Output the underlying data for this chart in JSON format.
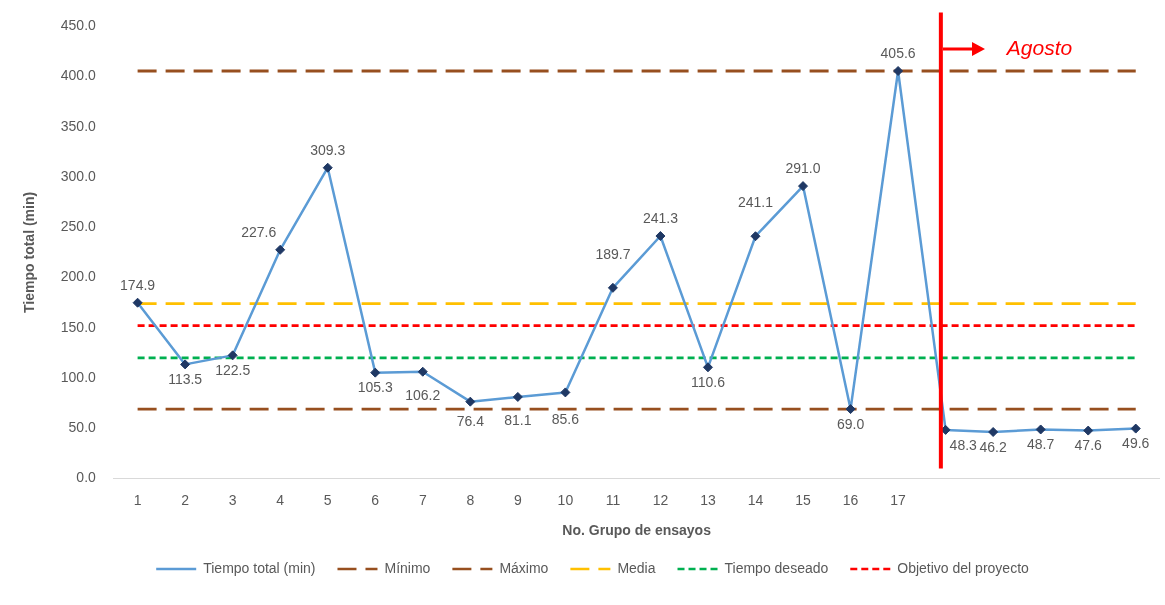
{
  "chart_data": {
    "type": "line",
    "xlabel": "No. Grupo de ensayos",
    "ylabel": "Tiempo total (min)",
    "x": [
      1,
      2,
      3,
      4,
      5,
      6,
      7,
      8,
      9,
      10,
      11,
      12,
      13,
      14,
      15,
      16,
      17,
      18,
      19,
      20,
      21,
      22
    ],
    "xlim": [
      0.5,
      22.5
    ],
    "xticks": [
      1,
      2,
      3,
      4,
      5,
      6,
      7,
      8,
      9,
      10,
      11,
      12,
      13,
      14,
      15,
      16,
      17
    ],
    "ylim": [
      0,
      450
    ],
    "yticks": [
      {
        "value": 0,
        "label": "0.0"
      },
      {
        "value": 50,
        "label": "50.0"
      },
      {
        "value": 100,
        "label": "100.0"
      },
      {
        "value": 150,
        "label": "150.0"
      },
      {
        "value": 200,
        "label": "200.0"
      },
      {
        "value": 250,
        "label": "250.0"
      },
      {
        "value": 300,
        "label": "300.0"
      },
      {
        "value": 350,
        "label": "350.0"
      },
      {
        "value": 400,
        "label": "400.0"
      },
      {
        "value": 450,
        "label": "450.0"
      }
    ],
    "legend": "bottom",
    "series": [
      {
        "name": "Tiempo total (min)",
        "color": "#5b9bd5",
        "colors": [
          "#1f3864",
          "#1f3864",
          "#1f3864",
          "#1f3864",
          "#1f3864",
          "#1f3864",
          "#1f3864",
          "#1f3864",
          "#1f3864",
          "#1f3864",
          "#1f3864",
          "#1f3864",
          "#1f3864",
          "#1f3864",
          "#1f3864",
          "#1f3864",
          "#1f3864",
          "#1f3864",
          "#1f3864",
          "#1f3864",
          "#1f3864",
          "#1f3864"
        ],
        "marker": "diamond",
        "line_style": "solid",
        "values": [
          174.9,
          113.5,
          122.5,
          227.6,
          309.3,
          105.3,
          106.2,
          76.4,
          81.1,
          85.6,
          189.7,
          241.3,
          110.6,
          241.1,
          291.0,
          69.0,
          405.6,
          48.3,
          46.2,
          48.7,
          47.6,
          49.6
        ],
        "value_labels": [
          "174.9",
          "113.5",
          "122.5",
          "227.6",
          "309.3",
          "105.3",
          "106.2",
          "76.4",
          "81.1",
          "85.6",
          "189.7",
          "241.3",
          "110.6",
          "241.1",
          "291.0",
          "69.0",
          "405.6",
          "48.3",
          "46.2",
          "48.7",
          "47.6",
          "49.6"
        ]
      },
      {
        "name": "Mínimo",
        "color": "#974f1f",
        "marker": "none",
        "line_style": "dashed",
        "values": [
          69.0,
          69.0,
          69.0,
          69.0,
          69.0,
          69.0,
          69.0,
          69.0,
          69.0,
          69.0,
          69.0,
          69.0,
          69.0,
          69.0,
          69.0,
          69.0,
          69.0,
          69.0,
          69.0,
          69.0,
          69.0,
          69.0
        ]
      },
      {
        "name": "Máximo",
        "color": "#974f1f",
        "marker": "none",
        "line_style": "dashed",
        "values": [
          405.6,
          405.6,
          405.6,
          405.6,
          405.6,
          405.6,
          405.6,
          405.6,
          405.6,
          405.6,
          405.6,
          405.6,
          405.6,
          405.6,
          405.6,
          405.6,
          405.6,
          405.6,
          405.6,
          405.6,
          405.6,
          405.6
        ]
      },
      {
        "name": "Media",
        "color": "#ffc000",
        "marker": "none",
        "line_style": "dashed",
        "values": [
          174,
          174,
          174,
          174,
          174,
          174,
          174,
          174,
          174,
          174,
          174,
          174,
          174,
          174,
          174,
          174,
          174,
          174,
          174,
          174,
          174,
          174
        ]
      },
      {
        "name": "Tiempo deseado",
        "color": "#00b050",
        "marker": "none",
        "line_style": "dotted",
        "values": [
          120,
          120,
          120,
          120,
          120,
          120,
          120,
          120,
          120,
          120,
          120,
          120,
          120,
          120,
          120,
          120,
          120,
          120,
          120,
          120,
          120,
          120
        ]
      },
      {
        "name": "Objetivo del proyecto",
        "color": "#ff0000",
        "marker": "none",
        "line_style": "dotted",
        "values": [
          152,
          152,
          152,
          152,
          152,
          152,
          152,
          152,
          152,
          152,
          152,
          152,
          152,
          152,
          152,
          152,
          152,
          152,
          152,
          152,
          152,
          152
        ]
      }
    ],
    "ref_lines": [
      {
        "axis": "x",
        "value": 17.9,
        "label": "Agosto",
        "color": "#ff0000"
      }
    ]
  }
}
